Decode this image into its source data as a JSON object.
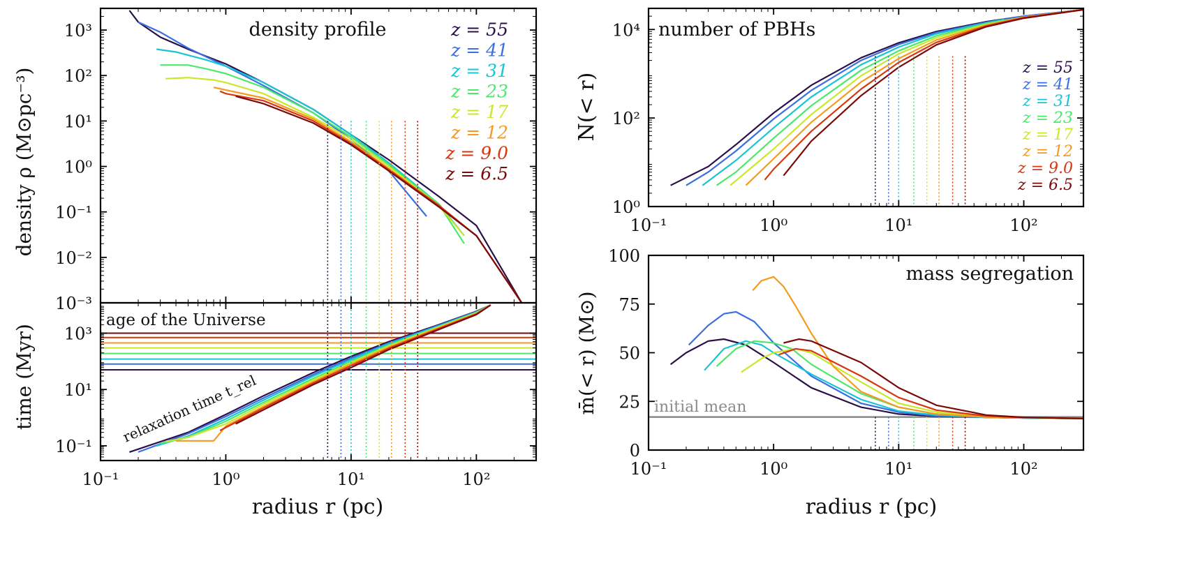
{
  "colors": {
    "z55": "#2a0f4a",
    "z41": "#3b6fe0",
    "z31": "#19c4d4",
    "z23": "#4de86a",
    "z17": "#c9e82a",
    "z12": "#f59a21",
    "z9": "#d8360f",
    "z6_5": "#7a0a0a",
    "initial_mean": "#8a8a8a"
  },
  "legend": [
    {
      "key": "z55",
      "label": "z = 55"
    },
    {
      "key": "z41",
      "label": "z = 41"
    },
    {
      "key": "z31",
      "label": "z = 31"
    },
    {
      "key": "z23",
      "label": "z = 23"
    },
    {
      "key": "z17",
      "label": "z = 17"
    },
    {
      "key": "z12",
      "label": "z = 12"
    },
    {
      "key": "z9",
      "label": "z = 9.0"
    },
    {
      "key": "z6_5",
      "label": "z = 6.5"
    }
  ],
  "chart_data": [
    {
      "id": "density",
      "type": "line",
      "title": "density profile",
      "ylabel": "density ρ (M⊙pc⁻³)",
      "xscale": "log",
      "yscale": "log",
      "xlim": [
        0.1,
        300
      ],
      "ylim": [
        0.001,
        3000
      ],
      "yticks": [
        {
          "v": 0.001,
          "label": "10⁻³"
        },
        {
          "v": 0.01,
          "label": "10⁻²"
        },
        {
          "v": 0.1,
          "label": "10⁻¹"
        },
        {
          "v": 1,
          "label": "10⁰"
        },
        {
          "v": 10,
          "label": "10¹"
        },
        {
          "v": 100,
          "label": "10²"
        },
        {
          "v": 1000,
          "label": "10³"
        }
      ],
      "legend_position": "top-right",
      "series": [
        {
          "key": "z55",
          "x": [
            0.17,
            0.2,
            0.3,
            0.5,
            1,
            2,
            5,
            10,
            20,
            50,
            100,
            230
          ],
          "y": [
            2700,
            1500,
            700,
            380,
            180,
            70,
            18,
            5,
            1.4,
            0.22,
            0.05,
            0.001
          ]
        },
        {
          "key": "z41",
          "x": [
            0.2,
            0.3,
            0.5,
            1,
            2,
            5,
            10,
            20,
            40
          ],
          "y": [
            1500,
            900,
            400,
            160,
            60,
            15,
            4,
            0.8,
            0.08
          ]
        },
        {
          "key": "z31",
          "x": [
            0.28,
            0.4,
            0.7,
            1,
            2,
            5,
            10,
            20,
            50,
            80
          ],
          "y": [
            380,
            330,
            220,
            160,
            70,
            18,
            5,
            1.2,
            0.15,
            0.03
          ]
        },
        {
          "key": "z23",
          "x": [
            0.3,
            0.5,
            0.7,
            1,
            2,
            5,
            10,
            20,
            50,
            80
          ],
          "y": [
            170,
            170,
            140,
            110,
            55,
            15,
            4.5,
            1.1,
            0.15,
            0.02
          ]
        },
        {
          "key": "z17",
          "x": [
            0.33,
            0.5,
            0.8,
            1,
            2,
            5,
            10,
            20,
            50,
            80
          ],
          "y": [
            85,
            90,
            80,
            70,
            40,
            12,
            4,
            1.0,
            0.14,
            0.03
          ]
        },
        {
          "key": "z12",
          "x": [
            0.8,
            1,
            2,
            5,
            10,
            20,
            50,
            100,
            230
          ],
          "y": [
            55,
            48,
            32,
            11,
            3.5,
            0.9,
            0.13,
            0.03,
            0.001
          ]
        },
        {
          "key": "z9",
          "x": [
            0.9,
            1,
            2,
            5,
            10,
            20,
            50,
            100,
            230
          ],
          "y": [
            45,
            40,
            28,
            10,
            3.2,
            0.85,
            0.14,
            0.03,
            0.001
          ]
        },
        {
          "key": "z6_5",
          "x": [
            1.2,
            2,
            5,
            10,
            20,
            50,
            100,
            230
          ],
          "y": [
            35,
            24,
            9,
            3,
            0.8,
            0.13,
            0.03,
            0.001
          ]
        }
      ],
      "vlines_ymax": 10
    },
    {
      "id": "time",
      "type": "line",
      "ylabel": "time (Myr)",
      "xlabel": "radius r (pc)",
      "xscale": "log",
      "yscale": "log",
      "xlim": [
        0.1,
        300
      ],
      "ylim": [
        0.03,
        12000
      ],
      "yticks": [
        {
          "v": 0.1,
          "label": "10⁻¹"
        },
        {
          "v": 10,
          "label": "10¹"
        },
        {
          "v": 1000,
          "label": "10³"
        }
      ],
      "xticks": [
        {
          "v": 0.1,
          "label": "10⁻¹"
        },
        {
          "v": 1,
          "label": "10⁰"
        },
        {
          "v": 10,
          "label": "10¹"
        },
        {
          "v": 100,
          "label": "10²"
        }
      ],
      "annotations": [
        "age of the Universe",
        "relaxation time t_rel"
      ],
      "ages": [
        {
          "key": "z55",
          "y": 50
        },
        {
          "key": "z41",
          "y": 80
        },
        {
          "key": "z31",
          "y": 120
        },
        {
          "key": "z23",
          "y": 190
        },
        {
          "key": "z17",
          "y": 300
        },
        {
          "key": "z12",
          "y": 450
        },
        {
          "key": "z9",
          "y": 700
        },
        {
          "key": "z6_5",
          "y": 1000
        }
      ],
      "series": [
        {
          "key": "z55",
          "x": [
            0.17,
            0.5,
            1,
            2,
            5,
            10,
            20,
            50,
            100,
            130
          ],
          "y": [
            0.06,
            0.3,
            1.3,
            6,
            40,
            150,
            500,
            2000,
            6000,
            10000
          ]
        },
        {
          "key": "z41",
          "x": [
            0.2,
            0.5,
            1,
            2,
            5,
            10,
            20,
            50,
            100,
            130
          ],
          "y": [
            0.06,
            0.27,
            1.1,
            5,
            34,
            130,
            450,
            1900,
            5800,
            10000
          ]
        },
        {
          "key": "z31",
          "x": [
            0.28,
            0.5,
            1,
            2,
            5,
            10,
            20,
            50,
            100,
            130
          ],
          "y": [
            0.1,
            0.22,
            0.9,
            4.2,
            30,
            115,
            420,
            1800,
            5600,
            10000
          ]
        },
        {
          "key": "z23",
          "x": [
            0.3,
            0.5,
            1,
            2,
            5,
            10,
            20,
            50,
            100,
            130
          ],
          "y": [
            0.12,
            0.2,
            0.75,
            3.5,
            25,
            100,
            380,
            1700,
            5400,
            10000
          ]
        },
        {
          "key": "z17",
          "x": [
            0.33,
            0.5,
            1,
            2,
            5,
            10,
            20,
            50,
            100,
            130
          ],
          "y": [
            0.14,
            0.2,
            0.6,
            3,
            22,
            90,
            350,
            1650,
            5200,
            10000
          ]
        },
        {
          "key": "z12",
          "x": [
            0.4,
            0.8,
            1,
            2,
            5,
            10,
            20,
            50,
            100,
            130
          ],
          "y": [
            0.15,
            0.15,
            0.5,
            2.5,
            19,
            80,
            320,
            1550,
            5000,
            10000
          ]
        },
        {
          "key": "z9",
          "x": [
            0.9,
            1,
            2,
            5,
            10,
            20,
            50,
            100,
            130
          ],
          "y": [
            0.35,
            0.45,
            2.2,
            17,
            70,
            290,
            1450,
            4800,
            10000
          ]
        },
        {
          "key": "z6_5",
          "x": [
            1.2,
            2,
            5,
            10,
            20,
            50,
            100,
            130
          ],
          "y": [
            0.6,
            1.9,
            15,
            60,
            260,
            1350,
            4600,
            10000
          ]
        }
      ]
    },
    {
      "id": "npbh",
      "type": "line",
      "title": "number of PBHs",
      "ylabel": "N(< r)",
      "xscale": "log",
      "yscale": "log",
      "xlim": [
        0.1,
        300
      ],
      "ylim": [
        1,
        30000
      ],
      "yticks": [
        {
          "v": 1,
          "label": "10⁰"
        },
        {
          "v": 100,
          "label": "10²"
        },
        {
          "v": 10000,
          "label": "10⁴"
        }
      ],
      "xticks": [
        {
          "v": 0.1,
          "label": "10⁻¹"
        },
        {
          "v": 1,
          "label": "10⁰"
        },
        {
          "v": 10,
          "label": "10¹"
        },
        {
          "v": 100,
          "label": "10²"
        }
      ],
      "legend_position": "center-right",
      "series": [
        {
          "key": "z55",
          "x": [
            0.15,
            0.3,
            0.5,
            1,
            2,
            5,
            10,
            20,
            50,
            100,
            300
          ],
          "y": [
            3,
            8,
            25,
            130,
            550,
            2300,
            5000,
            9000,
            15000,
            20000,
            28000
          ]
        },
        {
          "key": "z41",
          "x": [
            0.2,
            0.3,
            0.5,
            1,
            2,
            5,
            10,
            20,
            50,
            100,
            300
          ],
          "y": [
            3,
            6,
            18,
            95,
            420,
            2000,
            4600,
            8500,
            14500,
            20000,
            28000
          ]
        },
        {
          "key": "z31",
          "x": [
            0.27,
            0.5,
            1,
            2,
            5,
            10,
            20,
            50,
            70
          ],
          "y": [
            3,
            11,
            60,
            300,
            1600,
            4000,
            8000,
            14000,
            17000
          ]
        },
        {
          "key": "z23",
          "x": [
            0.35,
            0.5,
            1,
            2,
            5,
            10,
            20,
            50,
            100,
            300
          ],
          "y": [
            3,
            6,
            35,
            190,
            1200,
            3300,
            7200,
            13500,
            19000,
            28000
          ]
        },
        {
          "key": "z17",
          "x": [
            0.45,
            1,
            2,
            5,
            10,
            20,
            50,
            100,
            300
          ],
          "y": [
            3,
            20,
            120,
            900,
            2800,
            6500,
            13000,
            19000,
            28000
          ]
        },
        {
          "key": "z12",
          "x": [
            0.6,
            1,
            2,
            5,
            10,
            20,
            50,
            100,
            300
          ],
          "y": [
            3,
            12,
            80,
            650,
            2200,
            5800,
            12500,
            19000,
            28000
          ]
        },
        {
          "key": "z9",
          "x": [
            0.85,
            1,
            2,
            5,
            10,
            20,
            50,
            100,
            300
          ],
          "y": [
            4,
            7,
            50,
            450,
            1800,
            5100,
            12000,
            18500,
            28000
          ]
        },
        {
          "key": "z6_5",
          "x": [
            1.2,
            2,
            5,
            10,
            20,
            50,
            100,
            300
          ],
          "y": [
            5,
            30,
            320,
            1400,
            4500,
            11500,
            18000,
            28000
          ]
        }
      ]
    },
    {
      "id": "mass",
      "type": "line",
      "title": "mass segregation",
      "ylabel": "m̄(< r) (M⊙)",
      "xlabel": "radius r (pc)",
      "xscale": "log",
      "yscale": "linear",
      "xlim": [
        0.1,
        300
      ],
      "ylim": [
        0,
        100
      ],
      "yticks": [
        {
          "v": 0,
          "label": "0"
        },
        {
          "v": 25,
          "label": "25"
        },
        {
          "v": 50,
          "label": "50"
        },
        {
          "v": 75,
          "label": "75"
        },
        {
          "v": 100,
          "label": "100"
        }
      ],
      "xticks": [
        {
          "v": 0.1,
          "label": "10⁻¹"
        },
        {
          "v": 1,
          "label": "10⁰"
        },
        {
          "v": 10,
          "label": "10¹"
        },
        {
          "v": 100,
          "label": "10²"
        }
      ],
      "initial_mean": {
        "y": 17,
        "label": "initial mean"
      },
      "series": [
        {
          "key": "z55",
          "x": [
            0.15,
            0.2,
            0.3,
            0.4,
            0.6,
            1,
            2,
            5,
            10,
            20,
            50,
            100,
            300
          ],
          "y": [
            44,
            50,
            56,
            57,
            54,
            45,
            32,
            22,
            18.5,
            17.3,
            16.8,
            16.5,
            16.2
          ]
        },
        {
          "key": "z41",
          "x": [
            0.21,
            0.3,
            0.4,
            0.5,
            0.7,
            1,
            2,
            5,
            10,
            20,
            50,
            100,
            300
          ],
          "y": [
            54,
            64,
            70,
            71,
            66,
            55,
            38,
            24,
            19.5,
            17.5,
            16.8,
            16.5,
            16.2
          ]
        },
        {
          "key": "z31",
          "x": [
            0.28,
            0.4,
            0.6,
            0.8,
            1,
            2,
            5,
            10,
            20,
            50,
            100,
            300
          ],
          "y": [
            41,
            52,
            56,
            54,
            50,
            39,
            26,
            20,
            18,
            16.8,
            16.5,
            16.2
          ]
        },
        {
          "key": "z23",
          "x": [
            0.35,
            0.5,
            0.7,
            1,
            1.4,
            2,
            5,
            10,
            20,
            50,
            100,
            300
          ],
          "y": [
            43,
            52,
            56,
            55,
            52,
            44,
            29,
            22,
            18.5,
            17,
            16.5,
            16.2
          ]
        },
        {
          "key": "z17",
          "x": [
            0.55,
            0.8,
            1,
            1.5,
            2,
            5,
            10,
            20,
            50,
            100,
            300
          ],
          "y": [
            40,
            47,
            50,
            52,
            50,
            35,
            24,
            19.5,
            17.3,
            16.6,
            16.2
          ]
        },
        {
          "key": "z12",
          "x": [
            0.68,
            0.8,
            1,
            1.2,
            1.5,
            2,
            3,
            5,
            10,
            20,
            50,
            100,
            300
          ],
          "y": [
            82,
            87,
            89,
            84,
            74,
            60,
            43,
            30,
            22,
            18.5,
            17,
            16.6,
            16.2
          ]
        },
        {
          "key": "z9",
          "x": [
            1.1,
            1.5,
            2,
            5,
            10,
            20,
            50,
            100,
            300
          ],
          "y": [
            49,
            52,
            51,
            38,
            27,
            20.5,
            17.5,
            16.7,
            16.2
          ]
        },
        {
          "key": "z6_5",
          "x": [
            1.2,
            1.6,
            2,
            5,
            10,
            20,
            50,
            100,
            300
          ],
          "y": [
            55,
            57,
            56,
            45,
            32,
            23,
            18,
            16.8,
            16.2
          ]
        }
      ]
    }
  ],
  "vlines": [
    {
      "key": "z55",
      "x": 6.5
    },
    {
      "key": "z41",
      "x": 8.3
    },
    {
      "key": "z31",
      "x": 10.0
    },
    {
      "key": "z23",
      "x": 13.2
    },
    {
      "key": "z17",
      "x": 16.8
    },
    {
      "key": "z12",
      "x": 21.0
    },
    {
      "key": "z9",
      "x": 27.0
    },
    {
      "key": "z6_5",
      "x": 34.0
    }
  ]
}
